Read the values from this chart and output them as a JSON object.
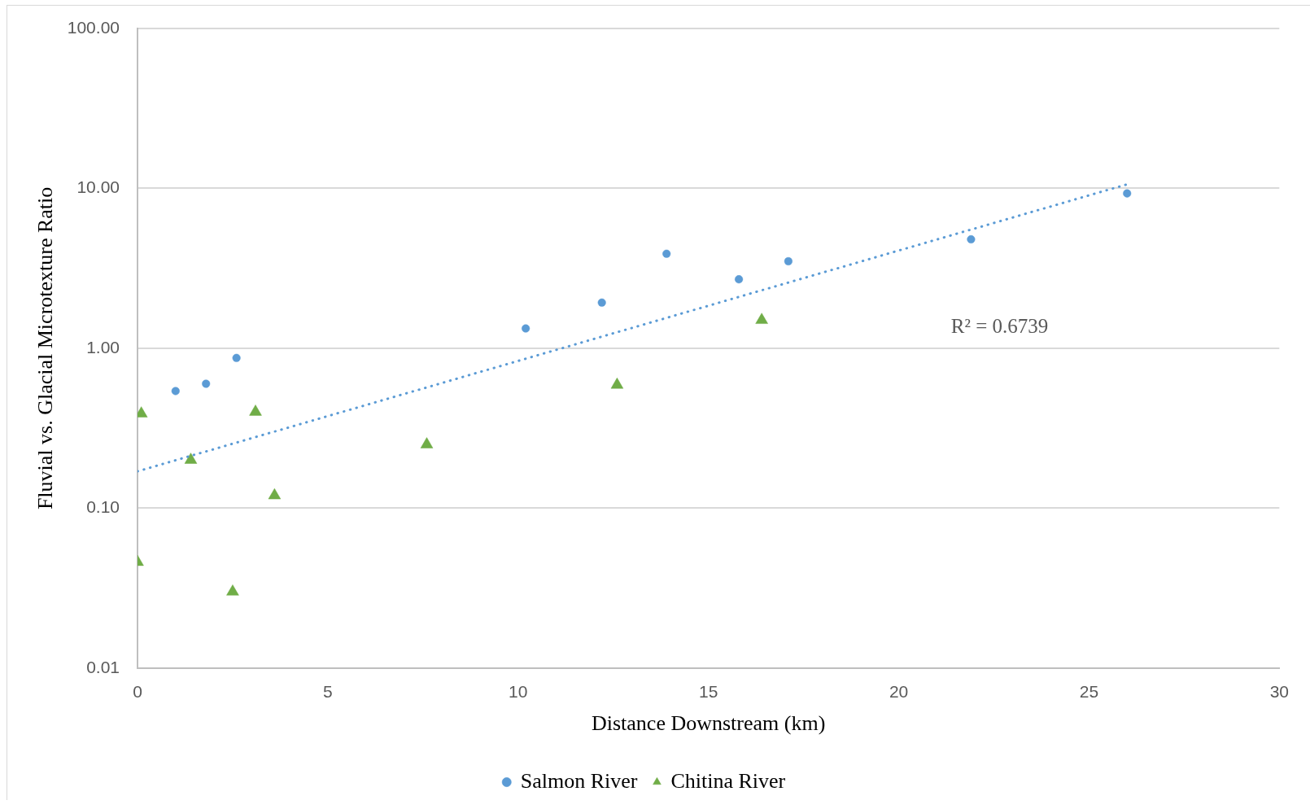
{
  "chart_data": {
    "type": "scatter",
    "xlabel": "Distance Downstream (km)",
    "ylabel": "Fluvial vs. Glacial Microtexture Ratio",
    "series": [
      {
        "name": "Salmon River",
        "type": "scatter",
        "color": "#5b9bd5",
        "marker": "circle",
        "x": [
          1.0,
          1.8,
          2.6,
          10.2,
          12.2,
          13.9,
          15.8,
          17.1,
          21.9,
          26.0
        ],
        "values": [
          0.54,
          0.6,
          0.87,
          1.33,
          1.93,
          3.9,
          2.7,
          3.5,
          4.8,
          9.3
        ]
      },
      {
        "name": "Chitina River",
        "type": "scatter",
        "color": "#70ad47",
        "marker": "triangle",
        "x": [
          0,
          0.1,
          1.4,
          2.5,
          3.1,
          3.6,
          7.6,
          12.6,
          16.4
        ],
        "values": [
          0.046,
          0.39,
          0.2,
          0.03,
          0.4,
          0.12,
          0.25,
          0.59,
          1.5
        ]
      },
      {
        "type": "line",
        "color": "#5b9bd5",
        "marker": "none",
        "line_style": "dotted",
        "x": [
          0,
          26
        ],
        "values": [
          0.17,
          10.6
        ]
      }
    ],
    "xlim": [
      0,
      30
    ],
    "xticks": [
      0,
      5,
      10,
      15,
      20,
      25,
      30
    ],
    "ylim": [
      0.01,
      100
    ],
    "yticks": [
      0.01,
      {
        "value": 0.1,
        "label": "0.10"
      },
      {
        "value": 1,
        "label": "1.00"
      },
      {
        "value": 10,
        "label": "10.00"
      },
      {
        "value": 100,
        "label": "100.00"
      }
    ],
    "log": "y",
    "grid": "y",
    "legend": "bottom",
    "annotations": [
      "R² = 0.6739"
    ]
  }
}
